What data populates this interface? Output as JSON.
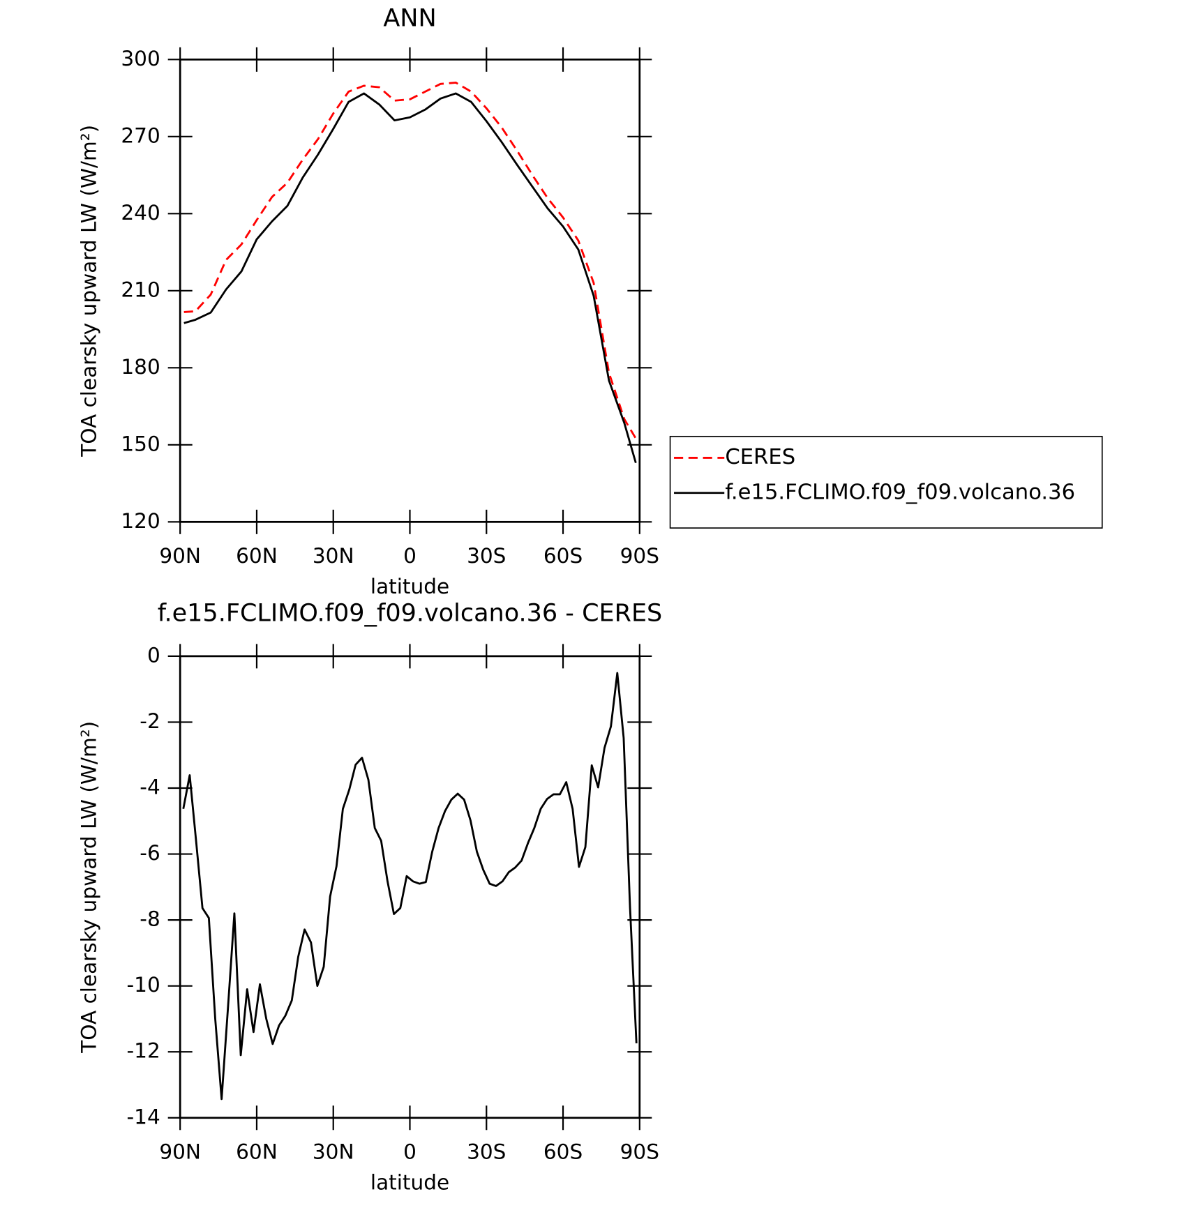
{
  "chart_data": [
    {
      "type": "line",
      "title": "ANN",
      "xlabel": "latitude",
      "ylabel": "TOA clearsky upward LW (W/m²)",
      "x": [
        88.5,
        84,
        78,
        72,
        66,
        60,
        54,
        48,
        42,
        36,
        30,
        24,
        18,
        12,
        6,
        0,
        -6,
        -12,
        -18,
        -24,
        -30,
        -36,
        -42,
        -48,
        -54,
        -60,
        -66,
        -72,
        -78,
        -84,
        -88.5
      ],
      "series": [
        {
          "name": "CERES",
          "color": "#ff0000",
          "style": "dashed",
          "values": [
            201.7,
            202,
            208.5,
            222,
            228,
            237.5,
            246.5,
            252,
            261,
            269,
            279,
            287.5,
            289.8,
            289.2,
            284,
            284.5,
            287.5,
            290.5,
            291,
            287.5,
            281,
            273.5,
            264.5,
            255,
            246,
            238.5,
            229.5,
            213,
            178,
            160,
            152.5
          ]
        },
        {
          "name": "f.e15.FCLIMO.f09_f09.volcano.36",
          "color": "#000000",
          "style": "solid",
          "values": [
            197.4,
            198.7,
            201.5,
            210.5,
            217.5,
            230,
            237,
            243,
            254,
            263,
            273,
            283.5,
            286.8,
            282.5,
            276.3,
            277.5,
            280.5,
            284.8,
            286.8,
            283.5,
            276,
            267.8,
            259,
            250.5,
            242,
            235,
            226,
            208,
            175,
            158.5,
            143
          ]
        }
      ],
      "xlim": [
        90,
        -90
      ],
      "xticks": [
        {
          "value": 90,
          "label": "90N"
        },
        {
          "value": 60,
          "label": "60N"
        },
        {
          "value": 30,
          "label": "30N"
        },
        0,
        {
          "value": -30,
          "label": "30S"
        },
        {
          "value": -60,
          "label": "60S"
        },
        {
          "value": -90,
          "label": "90S"
        }
      ],
      "ylim": [
        120,
        300
      ],
      "yticks": [
        120,
        150,
        180,
        210,
        240,
        270,
        300
      ],
      "legend": "right"
    },
    {
      "type": "line",
      "title": "f.e15.FCLIMO.f09_f09.volcano.36 - CERES",
      "xlabel": "latitude",
      "ylabel": "TOA clearsky upward LW (W/m²)",
      "x": [
        88.75,
        86.25,
        83.75,
        81.25,
        78.75,
        76.25,
        73.75,
        71.25,
        68.75,
        66.25,
        63.75,
        61.25,
        58.75,
        56.25,
        53.75,
        51.25,
        48.75,
        46.25,
        43.75,
        41.25,
        38.75,
        36.25,
        33.75,
        31.25,
        28.75,
        26.25,
        23.75,
        21.25,
        18.75,
        16.25,
        13.75,
        11.25,
        8.75,
        6.25,
        3.75,
        1.25,
        -1.25,
        -3.75,
        -6.25,
        -8.75,
        -11.25,
        -13.75,
        -16.25,
        -18.75,
        -21.25,
        -23.75,
        -26.25,
        -28.75,
        -31.25,
        -33.75,
        -36.25,
        -38.75,
        -41.25,
        -43.75,
        -46.25,
        -48.75,
        -51.25,
        -53.75,
        -56.25,
        -58.75,
        -61.25,
        -63.75,
        -66.25,
        -68.75,
        -71.25,
        -73.75,
        -76.25,
        -78.75,
        -81.25,
        -83.75,
        -86.25,
        -88.75
      ],
      "values": [
        -4.63,
        -3.61,
        -5.6,
        -7.64,
        -7.94,
        -11,
        -13.43,
        -10.65,
        -7.8,
        -12.1,
        -10.1,
        -11.4,
        -9.95,
        -11,
        -11.76,
        -11.2,
        -10.9,
        -10.44,
        -9.12,
        -8.29,
        -8.68,
        -10,
        -9.42,
        -7.29,
        -6.37,
        -4.63,
        -4.05,
        -3.29,
        -3.08,
        -3.75,
        -5.21,
        -5.6,
        -6.83,
        -7.82,
        -7.64,
        -6.67,
        -6.83,
        -6.9,
        -6.85,
        -5.93,
        -5.21,
        -4.7,
        -4.35,
        -4.17,
        -4.35,
        -4.98,
        -5.93,
        -6.48,
        -6.9,
        -6.97,
        -6.83,
        -6.55,
        -6.41,
        -6.2,
        -5.67,
        -5.21,
        -4.63,
        -4.33,
        -4.19,
        -4.19,
        -3.82,
        -4.63,
        -6.39,
        -5.79,
        -3.31,
        -3.98,
        -2.78,
        -2.13,
        -0.51,
        -2.48,
        -7.64,
        -11.74
      ],
      "color": "#000000",
      "xlim": [
        90,
        -90
      ],
      "xticks": [
        {
          "value": 90,
          "label": "90N"
        },
        {
          "value": 60,
          "label": "60N"
        },
        {
          "value": 30,
          "label": "30N"
        },
        0,
        {
          "value": -30,
          "label": "30S"
        },
        {
          "value": -60,
          "label": "60S"
        },
        {
          "value": -90,
          "label": "90S"
        }
      ],
      "ylim": [
        -14,
        0
      ],
      "yticks": [
        -14,
        -12,
        -10,
        -8,
        -6,
        -4,
        -2,
        0
      ]
    }
  ]
}
